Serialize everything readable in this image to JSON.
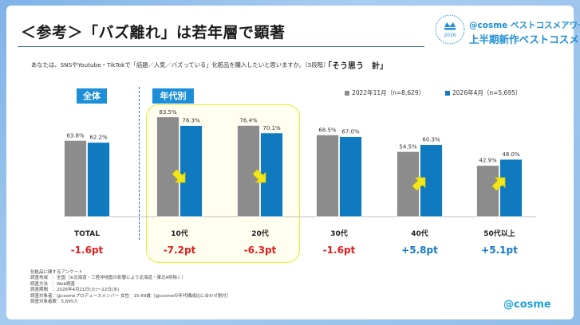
{
  "slide": {
    "title": "＜参考＞「バズ離れ」は若年層で顕著",
    "award_line1": "@cosme ベストコスメアワード",
    "award_line2": "上半期新作ベストコスメ",
    "award_badge_year": "2026",
    "question": "あなたは、SNSやYoutube・TikTokで「話題／人気／バズっている」化粧品を購入したいと思いますか。（5段階）",
    "question_emph": "「そう思う　計」",
    "tag_all": "全体",
    "tag_age": "年代別",
    "logo": "@cosme",
    "footnotes": [
      "化粧品に関するアンケート",
      "調査地域　：全国（※北海道・三陸沖地震の影響により北海道・東北4県除く）",
      "調査方法　：Web調査",
      "調査期間　：2026年4月21日(火)～22日(水)",
      "調査対象者：@cosmeプロデュースメンバー 女性　15-69歳（@cosmeの年代構成比に合わせ割付）",
      "調査対象者数：5,695人"
    ]
  },
  "colors": {
    "series_2022": "#8c8c8c",
    "series_2026": "#0f7ac0",
    "diff_negative": "#e02020",
    "diff_positive": "#1779c6",
    "tag_bg": "#1c8fd8",
    "highlight_border": "#e6ea33",
    "arrow": "#f2e718"
  },
  "chart_data": {
    "type": "bar",
    "categories": [
      "TOTAL",
      "10代",
      "20代",
      "30代",
      "40代",
      "50代以上"
    ],
    "series": [
      {
        "name": "2022年11月（n=8,629）",
        "values": [
          63.8,
          83.5,
          76.4,
          68.5,
          54.5,
          42.9
        ],
        "labels": [
          "63.8%",
          "83.5%",
          "76.4%",
          "68.5%",
          "54.5%",
          "42.9%"
        ]
      },
      {
        "name": "2026年4月（n=5,695）",
        "values": [
          62.2,
          76.3,
          70.1,
          67.0,
          60.3,
          48.0
        ],
        "labels": [
          "62.2%",
          "76.3%",
          "70.1%",
          "67.0%",
          "60.3%",
          "48.0%"
        ]
      }
    ],
    "differences": [
      "-1.6pt",
      "-7.2pt",
      "-6.3pt",
      "-1.6pt",
      "+5.8pt",
      "+5.1pt"
    ],
    "difference_values": [
      -1.6,
      -7.2,
      -6.3,
      -1.6,
      5.8,
      5.1
    ],
    "arrows": [
      "",
      "down",
      "down",
      "",
      "up",
      "up"
    ],
    "highlighted_categories": [
      "10代",
      "20代"
    ],
    "ylim": [
      0,
      90
    ],
    "grid": false,
    "legend_position": "top-right"
  }
}
